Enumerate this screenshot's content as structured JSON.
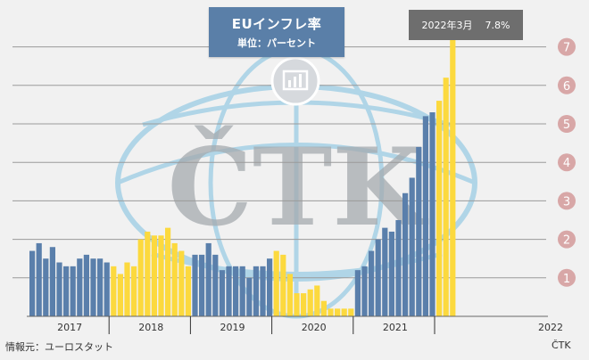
{
  "header": {
    "title": "EUインフレ率",
    "subtitle": "単位：パーセント"
  },
  "callout": {
    "date": "2022年3月",
    "value": "7.8%"
  },
  "footer": {
    "source": "情報元：ユーロスタット",
    "credit": "ČTK"
  },
  "watermark": {
    "text": "ČTK"
  },
  "colors": {
    "blue": "#5a7fab",
    "yellow": "#fcd93e",
    "badge": "#d8a7a7",
    "grid": "#9a9a9a"
  },
  "chart_data": {
    "type": "bar",
    "ylim": [
      0,
      7.8
    ],
    "yticks": [
      "1",
      "2",
      "3",
      "4",
      "5",
      "6",
      "7"
    ],
    "year_labels": [
      "2017",
      "2018",
      "2019",
      "2020",
      "2021",
      "2022"
    ],
    "series": [
      {
        "year": "2017",
        "color": "blue",
        "values": [
          1.7,
          1.9,
          1.5,
          1.8,
          1.4,
          1.3,
          1.3,
          1.5,
          1.6,
          1.5,
          1.5,
          1.4
        ]
      },
      {
        "year": "2018",
        "color": "yellow",
        "values": [
          1.3,
          1.1,
          1.4,
          1.3,
          2.0,
          2.2,
          2.1,
          2.1,
          2.3,
          1.9,
          1.7,
          1.3
        ]
      },
      {
        "year": "2019",
        "color": "blue",
        "values": [
          1.6,
          1.6,
          1.9,
          1.6,
          1.2,
          1.3,
          1.3,
          1.3,
          1.0,
          1.3,
          1.3,
          1.5
        ]
      },
      {
        "year": "2020",
        "color": "yellow",
        "values": [
          1.7,
          1.6,
          1.1,
          0.6,
          0.6,
          0.7,
          0.8,
          0.4,
          0.2,
          0.2,
          0.2,
          0.2
        ]
      },
      {
        "year": "2021",
        "color": "blue",
        "values": [
          1.2,
          1.3,
          1.7,
          2.0,
          2.3,
          2.2,
          2.5,
          3.2,
          3.6,
          4.4,
          5.2,
          5.3
        ]
      },
      {
        "year": "2022",
        "color": "yellow",
        "values": [
          5.6,
          6.2,
          7.8
        ]
      }
    ]
  }
}
